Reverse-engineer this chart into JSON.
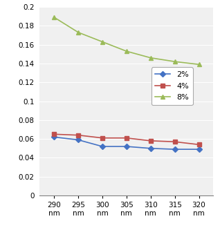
{
  "x": [
    290,
    295,
    300,
    305,
    310,
    315,
    320
  ],
  "series_2pct": [
    0.062,
    0.059,
    0.052,
    0.052,
    0.05,
    0.049,
    0.049
  ],
  "series_4pct": [
    0.065,
    0.064,
    0.061,
    0.061,
    0.058,
    0.057,
    0.054
  ],
  "series_8pct": [
    0.189,
    0.173,
    0.163,
    0.153,
    0.146,
    0.142,
    0.139
  ],
  "color_2pct": "#4472C4",
  "color_4pct": "#C0504D",
  "color_8pct": "#9BBB59",
  "ylim": [
    0,
    0.2
  ],
  "yticks": [
    0,
    0.02,
    0.04,
    0.06,
    0.08,
    0.1,
    0.12,
    0.14,
    0.16,
    0.18,
    0.2
  ],
  "legend_labels": [
    "2%",
    "4%",
    "8%"
  ],
  "background_color": "#FFFFFF",
  "plot_bg_color": "#F0F0F0"
}
